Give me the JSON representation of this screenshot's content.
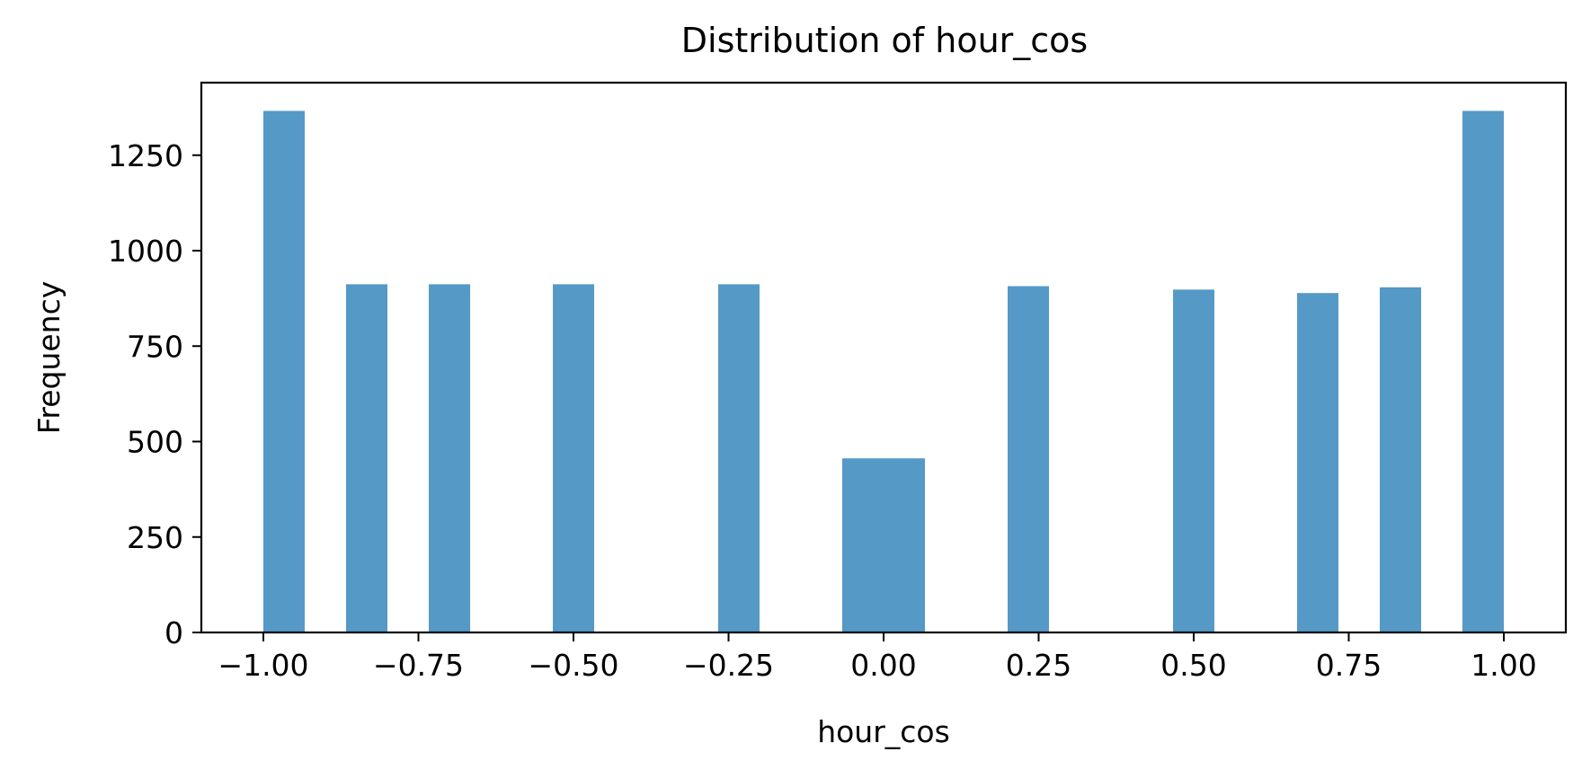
{
  "chart_data": {
    "type": "bar",
    "title": "Distribution of hour_cos",
    "xlabel": "hour_cos",
    "ylabel": "Frequency",
    "xlim": [
      -1.1,
      1.1
    ],
    "ylim": [
      0,
      1440
    ],
    "xticks": [
      -1.0,
      -0.75,
      -0.5,
      -0.25,
      0.0,
      0.25,
      0.5,
      0.75,
      1.0
    ],
    "xtick_labels": [
      "−1.00",
      "−0.75",
      "−0.50",
      "−0.25",
      "0.00",
      "0.25",
      "0.50",
      "0.75",
      "1.00"
    ],
    "yticks": [
      0,
      250,
      500,
      750,
      1000,
      1250
    ],
    "ytick_labels": [
      "0",
      "250",
      "500",
      "750",
      "1000",
      "1250"
    ],
    "bin_width": 0.0667,
    "bins": [
      {
        "x0": -1.0,
        "count": 1366
      },
      {
        "x0": -0.8667,
        "count": 912
      },
      {
        "x0": -0.7333,
        "count": 912
      },
      {
        "x0": -0.5333,
        "count": 912
      },
      {
        "x0": -0.2667,
        "count": 912
      },
      {
        "x0": -0.0667,
        "count": 456
      },
      {
        "x0": 0.0,
        "count": 456
      },
      {
        "x0": 0.2,
        "count": 907
      },
      {
        "x0": 0.4667,
        "count": 898
      },
      {
        "x0": 0.6667,
        "count": 889
      },
      {
        "x0": 0.8,
        "count": 904
      },
      {
        "x0": 0.9333,
        "count": 1366
      }
    ],
    "bar_color": "#5599c7",
    "grid": false,
    "legend": false
  }
}
